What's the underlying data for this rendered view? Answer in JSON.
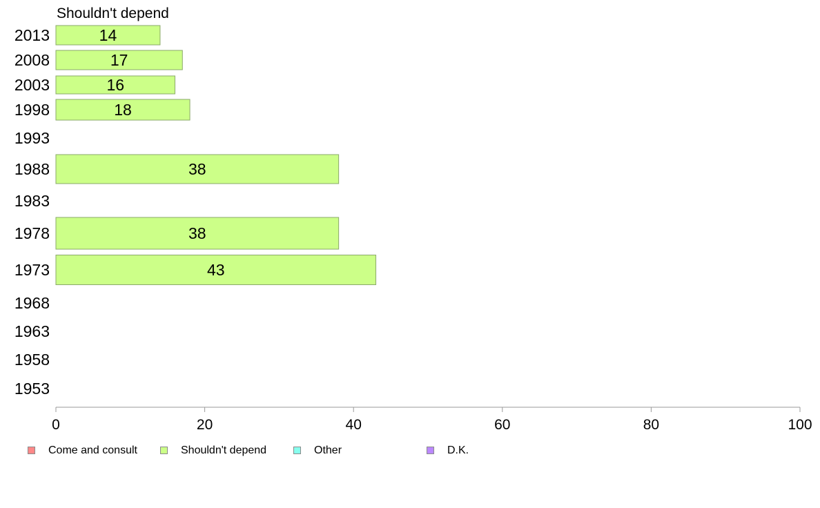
{
  "chart_data": {
    "type": "bar",
    "orientation": "horizontal",
    "title": "Shouldn't depend",
    "categories": [
      "2013",
      "2008",
      "2003",
      "1998",
      "1993",
      "1988",
      "1983",
      "1978",
      "1973",
      "1968",
      "1963",
      "1958",
      "1953"
    ],
    "series": [
      {
        "name": "Come and consult",
        "color": "#ff8888",
        "values": [
          null,
          null,
          null,
          null,
          null,
          null,
          null,
          null,
          null,
          null,
          null,
          null,
          null
        ]
      },
      {
        "name": "Shouldn't depend",
        "color": "#ccff88",
        "values": [
          14,
          17,
          16,
          18,
          null,
          38,
          null,
          38,
          43,
          null,
          null,
          null,
          null
        ]
      },
      {
        "name": "Other",
        "color": "#88ffee",
        "values": [
          null,
          null,
          null,
          null,
          null,
          null,
          null,
          null,
          null,
          null,
          null,
          null,
          null
        ]
      },
      {
        "name": "D.K.",
        "color": "#bb88ff",
        "values": [
          null,
          null,
          null,
          null,
          null,
          null,
          null,
          null,
          null,
          null,
          null,
          null,
          null
        ]
      }
    ],
    "visible_series": "Shouldn't depend",
    "data_labels": [
      "14",
      "17",
      "16",
      "18",
      "",
      "38",
      "",
      "38",
      "43",
      "",
      "",
      "",
      ""
    ],
    "xlim": [
      0,
      100
    ],
    "xticks": [
      "0",
      "20",
      "40",
      "60",
      "80",
      "100"
    ],
    "grid": false,
    "legend_position": "bottom-left"
  },
  "colors": {
    "bar_fill": "#ccff88",
    "bar_stroke": "#8aa86a",
    "axis": "#999999"
  }
}
